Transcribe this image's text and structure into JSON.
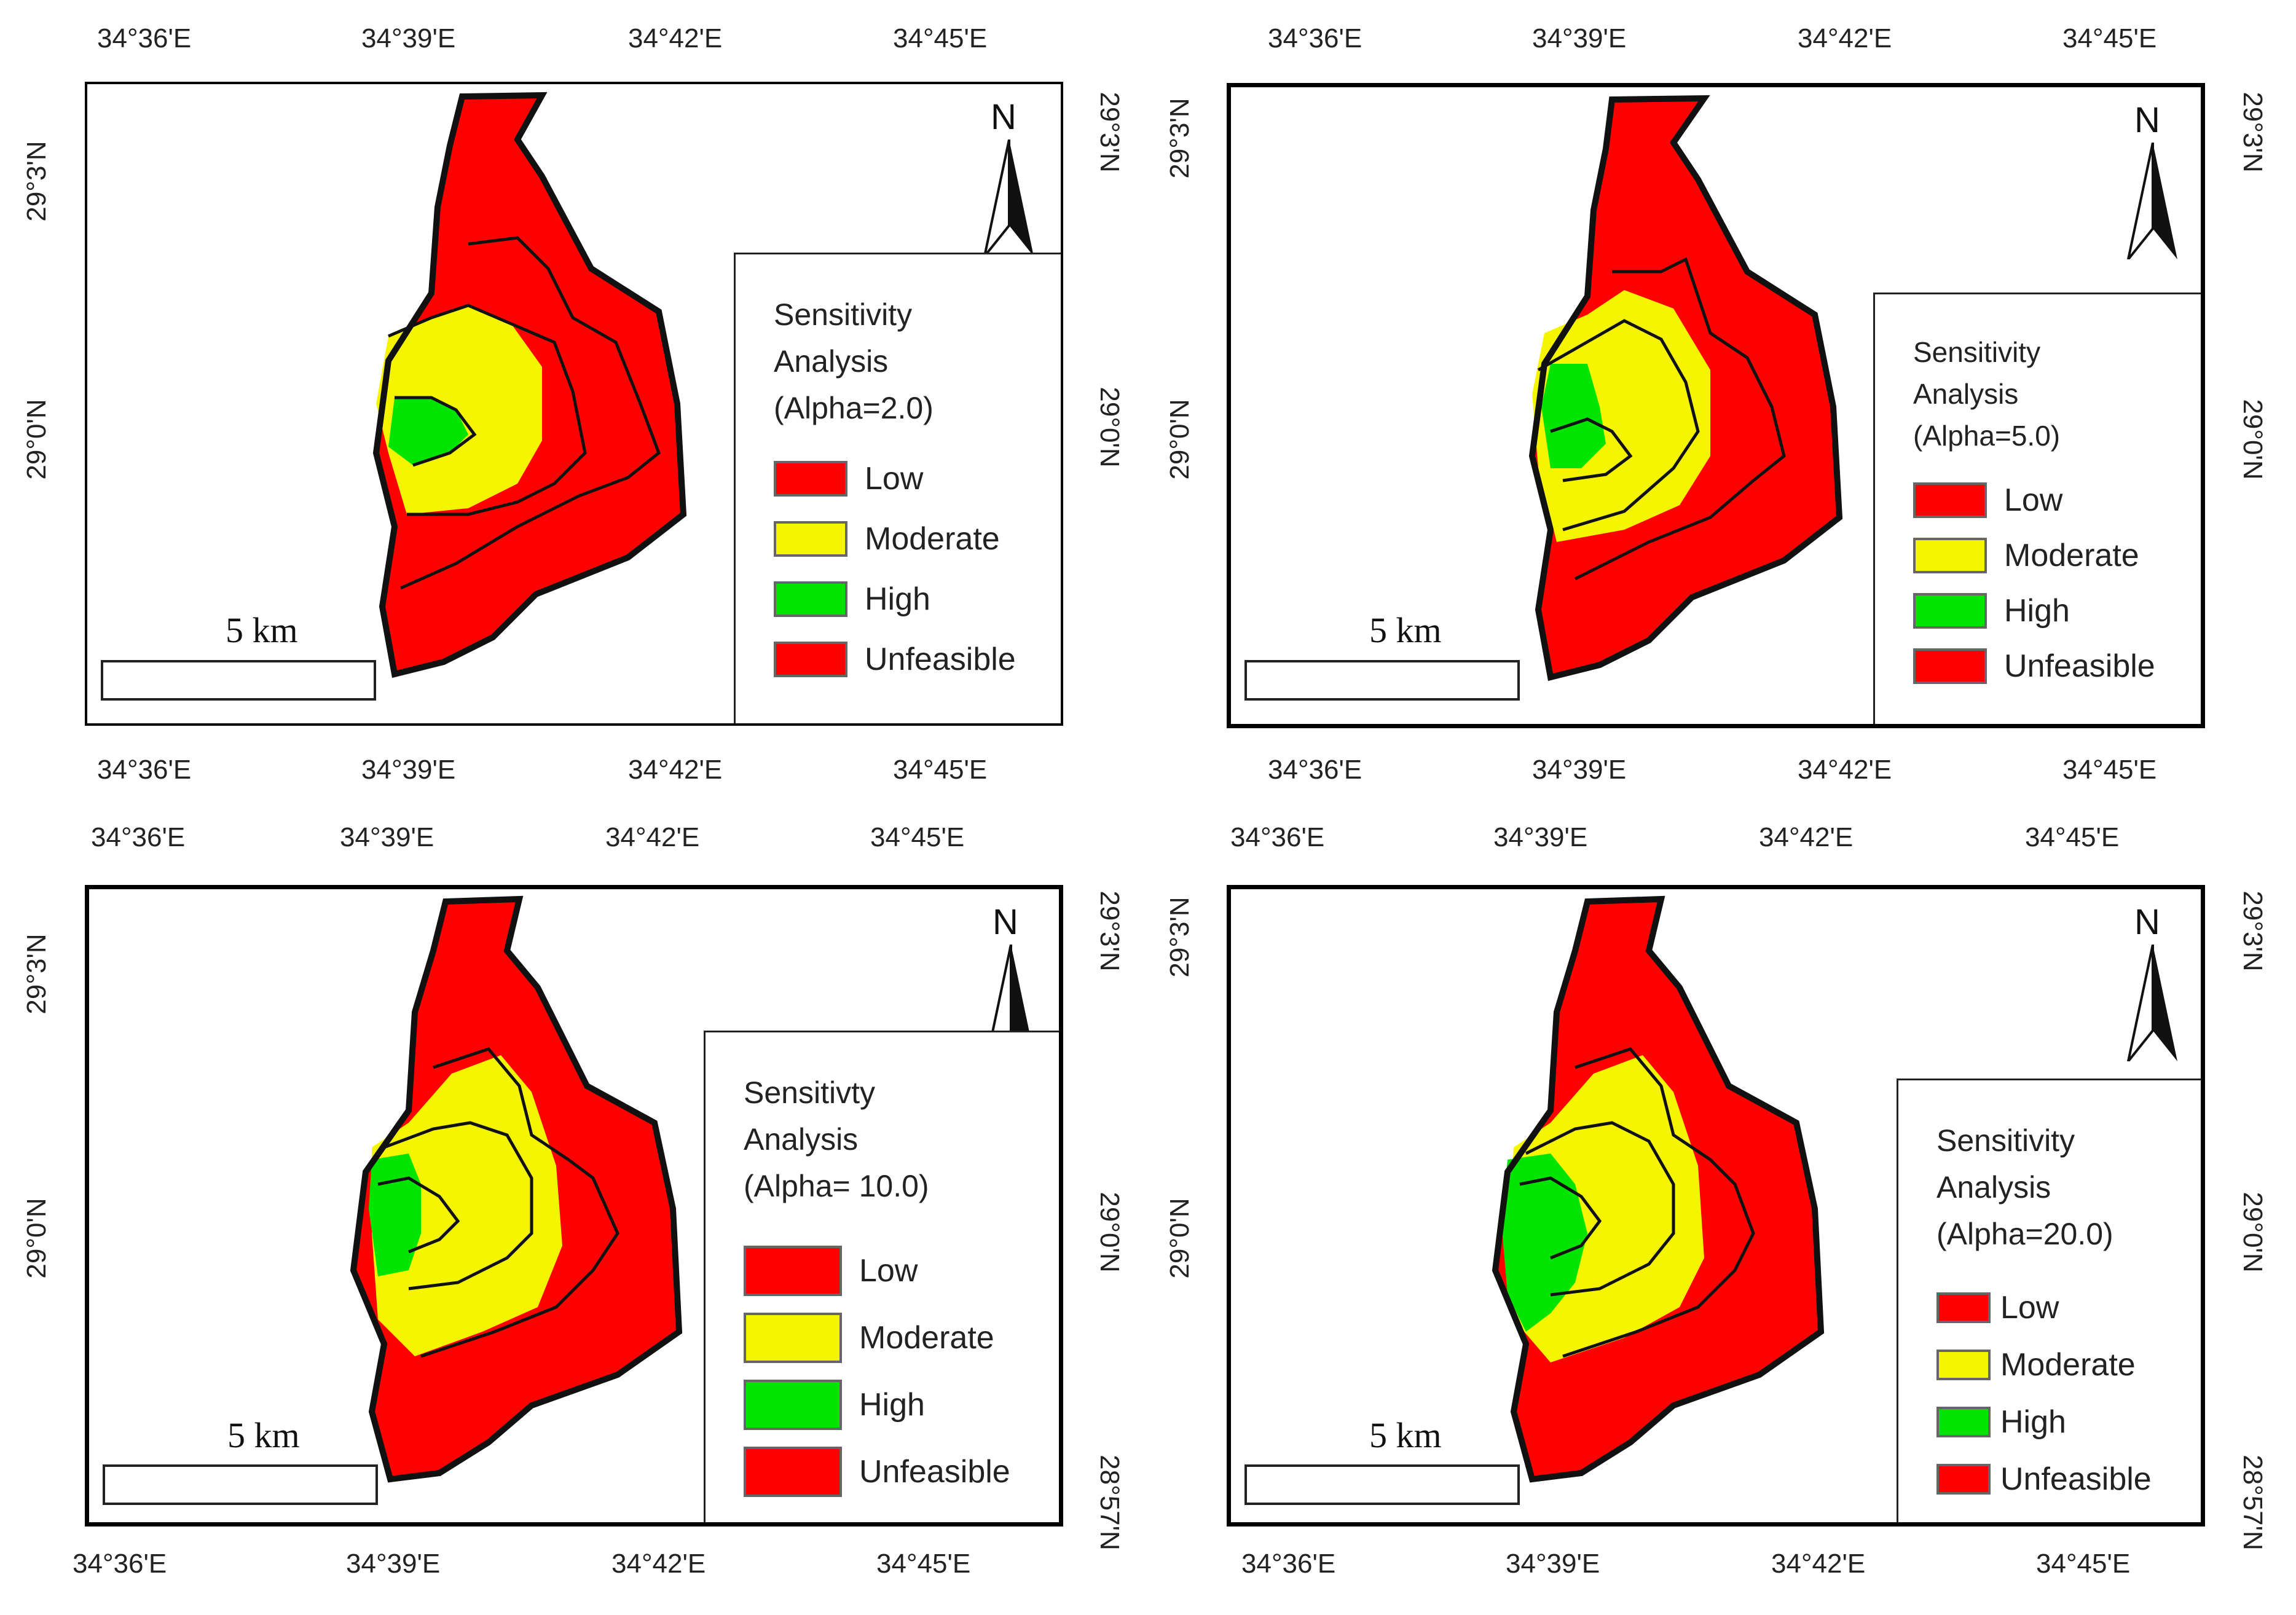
{
  "colors": {
    "low": "#ff0000",
    "moderate": "#f5f500",
    "high": "#00e400",
    "unfeasible": "#ff0000",
    "outline": "#111111"
  },
  "lon_labels": [
    "34°36'E",
    "34°39'E",
    "34°42'E",
    "34°45'E"
  ],
  "lat_labels": {
    "top": "29°3'N",
    "mid": "29°0'N",
    "bottom": "28°57'N"
  },
  "scale": "5 km",
  "north": "N",
  "legend_items": [
    "Low",
    "Moderate",
    "High",
    "Unfeasible"
  ],
  "panels": [
    {
      "title": [
        "Sensitivity",
        "Analysis",
        "(Alpha=2.0)"
      ],
      "high_extent": 0.3,
      "moderate_extent": 0.55
    },
    {
      "title": [
        "Sensitivity",
        "Analysis",
        "(Alpha=5.0)"
      ],
      "high_extent": 0.38,
      "moderate_extent": 0.62
    },
    {
      "title": [
        "Sensitivty",
        "Analysis",
        "(Alpha= 10.0)"
      ],
      "high_extent": 0.45,
      "moderate_extent": 0.68
    },
    {
      "title": [
        "Sensitivity",
        "Analysis",
        "(Alpha=20.0)"
      ],
      "high_extent": 0.55,
      "moderate_extent": 0.72
    }
  ]
}
